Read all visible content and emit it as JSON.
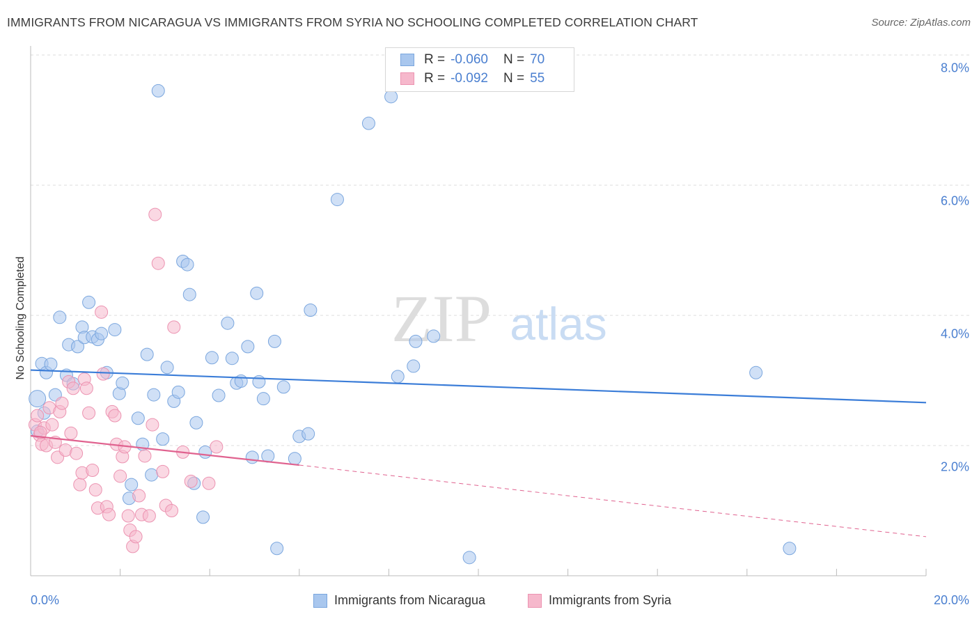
{
  "title": "IMMIGRANTS FROM NICARAGUA VS IMMIGRANTS FROM SYRIA NO SCHOOLING COMPLETED CORRELATION CHART",
  "source": "Source: ZipAtlas.com",
  "watermark": {
    "zip": "ZIP",
    "atlas": "atlas"
  },
  "legend_top": {
    "rows": [
      {
        "r_label": "R =",
        "r_value": "-0.060",
        "n_label": "N =",
        "n_value": "70"
      },
      {
        "r_label": "R =",
        "r_value": "-0.092",
        "n_label": "N =",
        "n_value": "55"
      }
    ]
  },
  "legend_bottom": {
    "items": [
      {
        "label": "Immigrants from Nicaragua"
      },
      {
        "label": "Immigrants from Syria"
      }
    ]
  },
  "colors": {
    "nicaragua_fill": "#a9c7ee",
    "nicaragua_stroke": "#7aa6de",
    "nicaragua_line": "#3b7dd8",
    "syria_fill": "#f6b8cc",
    "syria_stroke": "#ec93b1",
    "syria_line": "#e0628f",
    "tick_text": "#4a7fd0",
    "grid": "#dddddd"
  },
  "chart_data": {
    "type": "scatter",
    "title": "IMMIGRANTS FROM NICARAGUA VS IMMIGRANTS FROM SYRIA NO SCHOOLING COMPLETED CORRELATION CHART",
    "xlabel": "",
    "ylabel": "No Schooling Completed",
    "xlim": [
      0,
      20
    ],
    "ylim": [
      0,
      8
    ],
    "x_tick_labels": [
      "0.0%",
      "20.0%"
    ],
    "y_ticks": [
      2,
      4,
      6,
      8
    ],
    "y_tick_labels": [
      "2.0%",
      "4.0%",
      "6.0%",
      "8.0%"
    ],
    "grid": true,
    "legend_position": "bottom",
    "series": [
      {
        "name": "Immigrants from Nicaragua",
        "r": -0.06,
        "n": 70,
        "trend": {
          "x": [
            0,
            20
          ],
          "y": [
            3.16,
            2.66
          ],
          "dashed_after": null
        },
        "points": [
          [
            0.15,
            2.72
          ],
          [
            0.25,
            3.26
          ],
          [
            0.35,
            3.12
          ],
          [
            0.45,
            3.25
          ],
          [
            0.55,
            2.78
          ],
          [
            0.65,
            3.97
          ],
          [
            0.8,
            3.08
          ],
          [
            0.85,
            3.55
          ],
          [
            0.95,
            2.95
          ],
          [
            1.05,
            3.52
          ],
          [
            1.15,
            3.82
          ],
          [
            1.2,
            3.66
          ],
          [
            1.3,
            4.2
          ],
          [
            1.38,
            3.67
          ],
          [
            1.5,
            3.63
          ],
          [
            1.58,
            3.72
          ],
          [
            1.7,
            3.12
          ],
          [
            1.88,
            3.78
          ],
          [
            1.98,
            2.8
          ],
          [
            2.05,
            2.96
          ],
          [
            2.2,
            1.19
          ],
          [
            2.25,
            1.4
          ],
          [
            2.4,
            2.42
          ],
          [
            2.5,
            2.02
          ],
          [
            2.6,
            3.4
          ],
          [
            2.7,
            1.55
          ],
          [
            2.75,
            2.78
          ],
          [
            2.85,
            7.45
          ],
          [
            2.95,
            2.1
          ],
          [
            3.05,
            3.2
          ],
          [
            3.2,
            2.68
          ],
          [
            3.3,
            2.82
          ],
          [
            3.4,
            4.83
          ],
          [
            3.5,
            4.78
          ],
          [
            3.55,
            4.32
          ],
          [
            3.65,
            1.42
          ],
          [
            3.7,
            2.35
          ],
          [
            3.85,
            0.9
          ],
          [
            3.9,
            1.9
          ],
          [
            4.05,
            3.35
          ],
          [
            4.2,
            2.77
          ],
          [
            4.4,
            3.88
          ],
          [
            4.5,
            3.34
          ],
          [
            4.6,
            2.96
          ],
          [
            4.7,
            2.99
          ],
          [
            4.85,
            3.52
          ],
          [
            4.95,
            1.82
          ],
          [
            5.05,
            4.34
          ],
          [
            5.1,
            2.98
          ],
          [
            5.2,
            2.72
          ],
          [
            5.3,
            1.84
          ],
          [
            5.45,
            3.6
          ],
          [
            5.5,
            0.42
          ],
          [
            5.65,
            2.9
          ],
          [
            5.9,
            1.8
          ],
          [
            6.0,
            2.14
          ],
          [
            6.2,
            2.18
          ],
          [
            6.25,
            4.08
          ],
          [
            6.85,
            5.78
          ],
          [
            7.55,
            6.95
          ],
          [
            8.05,
            7.36
          ],
          [
            8.2,
            3.06
          ],
          [
            8.55,
            3.22
          ],
          [
            8.6,
            3.6
          ],
          [
            9.0,
            3.68
          ],
          [
            9.8,
            0.28
          ],
          [
            16.2,
            3.12
          ],
          [
            16.95,
            0.42
          ],
          [
            0.15,
            2.22
          ],
          [
            0.3,
            2.5
          ]
        ]
      },
      {
        "name": "Immigrants from Syria",
        "r": -0.092,
        "n": 55,
        "trend": {
          "x": [
            0,
            6
          ],
          "y": [
            2.15,
            1.7
          ],
          "dashed_to": [
            20,
            0.6
          ]
        },
        "points": [
          [
            0.1,
            2.32
          ],
          [
            0.15,
            2.46
          ],
          [
            0.2,
            2.16
          ],
          [
            0.25,
            2.02
          ],
          [
            0.3,
            2.27
          ],
          [
            0.35,
            2.0
          ],
          [
            0.42,
            2.58
          ],
          [
            0.48,
            2.32
          ],
          [
            0.55,
            2.05
          ],
          [
            0.6,
            1.82
          ],
          [
            0.65,
            2.52
          ],
          [
            0.7,
            2.65
          ],
          [
            0.78,
            1.93
          ],
          [
            0.85,
            2.98
          ],
          [
            0.9,
            2.19
          ],
          [
            0.95,
            2.88
          ],
          [
            1.02,
            1.88
          ],
          [
            1.1,
            1.4
          ],
          [
            1.15,
            1.58
          ],
          [
            1.2,
            3.02
          ],
          [
            1.25,
            2.88
          ],
          [
            1.3,
            2.5
          ],
          [
            1.38,
            1.62
          ],
          [
            1.45,
            1.32
          ],
          [
            1.5,
            1.04
          ],
          [
            1.58,
            4.05
          ],
          [
            1.62,
            3.1
          ],
          [
            1.7,
            1.06
          ],
          [
            1.75,
            0.94
          ],
          [
            1.82,
            2.52
          ],
          [
            1.88,
            2.46
          ],
          [
            1.92,
            2.02
          ],
          [
            2.0,
            1.53
          ],
          [
            2.05,
            1.83
          ],
          [
            2.1,
            1.98
          ],
          [
            2.18,
            0.92
          ],
          [
            2.22,
            0.7
          ],
          [
            2.28,
            0.45
          ],
          [
            2.35,
            0.6
          ],
          [
            2.42,
            1.23
          ],
          [
            2.48,
            0.94
          ],
          [
            2.55,
            1.84
          ],
          [
            2.65,
            0.92
          ],
          [
            2.72,
            2.32
          ],
          [
            2.78,
            5.55
          ],
          [
            2.85,
            4.8
          ],
          [
            2.95,
            1.6
          ],
          [
            3.02,
            1.08
          ],
          [
            3.15,
            1.0
          ],
          [
            3.2,
            3.82
          ],
          [
            3.4,
            1.9
          ],
          [
            3.58,
            1.45
          ],
          [
            3.98,
            1.42
          ],
          [
            4.15,
            1.98
          ],
          [
            0.22,
            2.2
          ]
        ]
      }
    ]
  }
}
